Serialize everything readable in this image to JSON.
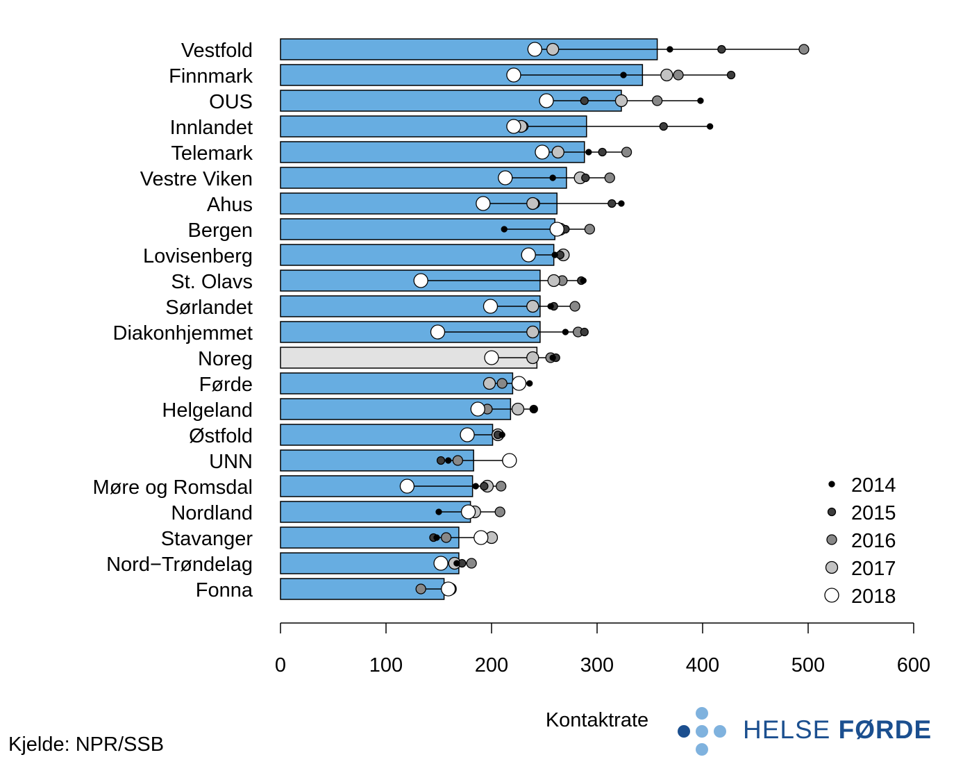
{
  "chart_data": {
    "type": "bar",
    "xlabel": "Kontaktrate",
    "xlim": [
      0,
      600
    ],
    "xticks": [
      0,
      100,
      200,
      300,
      400,
      500,
      600
    ],
    "categories": [
      "Vestfold",
      "Finnmark",
      "OUS",
      "Innlandet",
      "Telemark",
      "Vestre Viken",
      "Ahus",
      "Bergen",
      "Lovisenberg",
      "St. Olavs",
      "Sørlandet",
      "Diakonhjemmet",
      "Noreg",
      "Førde",
      "Helgeland",
      "Østfold",
      "UNN",
      "Møre og Romsdal",
      "Nordland",
      "Stavanger",
      "Nord−Trøndelag",
      "Fonna"
    ],
    "highlight": "Noreg",
    "values": [
      357,
      343,
      323,
      290,
      288,
      271,
      262,
      260,
      259,
      246,
      246,
      246,
      243,
      220,
      218,
      201,
      183,
      182,
      180,
      169,
      169,
      155
    ],
    "series": [
      {
        "name": "2014",
        "values": [
          369,
          325,
          398,
          407,
          292,
          258,
          323,
          212,
          260,
          287,
          256,
          270,
          258,
          236,
          240,
          210,
          159,
          185,
          150,
          148,
          167,
          157
        ]
      },
      {
        "name": "2015",
        "values": [
          418,
          427,
          288,
          363,
          305,
          289,
          314,
          270,
          265,
          285,
          259,
          288,
          261,
          228,
          240,
          206,
          152,
          193,
          177,
          145,
          172,
          160
        ]
      },
      {
        "name": "2016",
        "values": [
          496,
          377,
          357,
          230,
          328,
          312,
          241,
          293,
          268,
          267,
          279,
          282,
          256,
          210,
          196,
          205,
          168,
          209,
          208,
          157,
          181,
          133
        ]
      },
      {
        "name": "2017",
        "values": [
          258,
          366,
          323,
          228,
          263,
          284,
          239,
          265,
          268,
          259,
          239,
          239,
          239,
          198,
          225,
          206,
          216,
          196,
          184,
          200,
          165,
          161
        ]
      },
      {
        "name": "2018",
        "values": [
          241,
          221,
          252,
          221,
          248,
          213,
          192,
          262,
          235,
          133,
          199,
          149,
          200,
          226,
          187,
          177,
          217,
          120,
          178,
          190,
          152,
          159
        ]
      }
    ],
    "colors": {
      "bar": "#67ade1",
      "bar_highlight": "#e2e2e2",
      "2014": "#000000",
      "2015": "#3d3d3d",
      "2016": "#888888",
      "2017": "#c2c2c2",
      "2018": "#ffffff"
    },
    "legend_position": "bottom-right"
  },
  "source": "Kjelde: NPR/SSB",
  "logo": {
    "text_light": "HELSE ",
    "text_bold": "FØRDE",
    "color": "#1b4f8f"
  }
}
